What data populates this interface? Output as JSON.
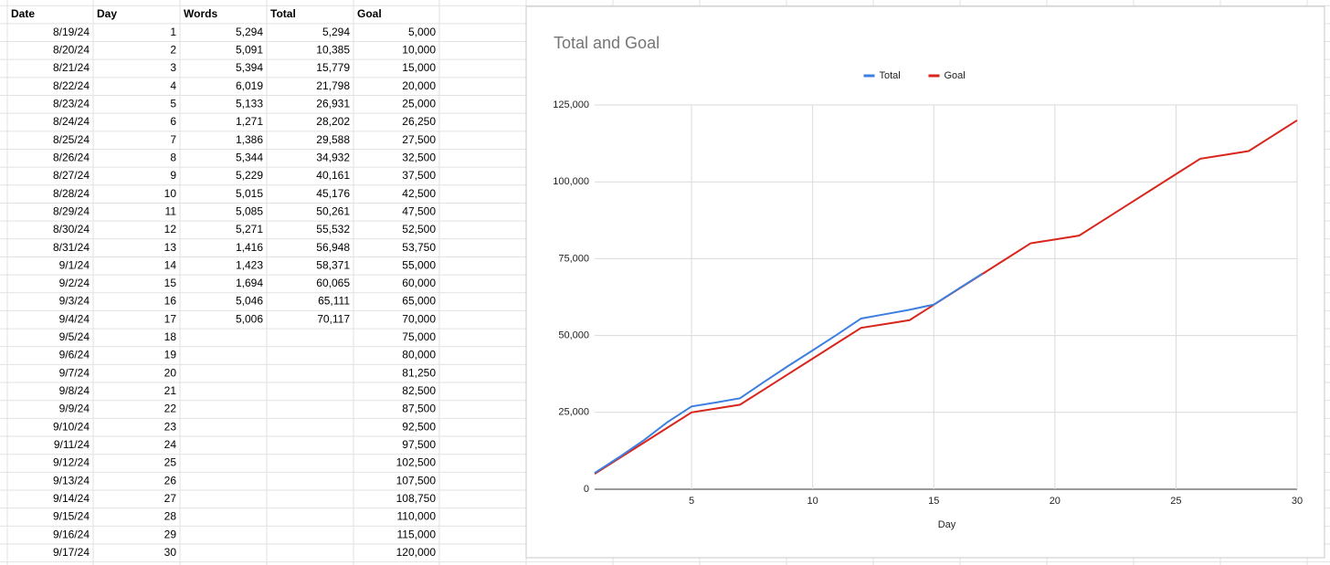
{
  "table": {
    "columns": [
      "Date",
      "Day",
      "Words",
      "Total",
      "Goal"
    ],
    "rows": [
      [
        "8/19/24",
        "1",
        "5,294",
        "5,294",
        "5,000"
      ],
      [
        "8/20/24",
        "2",
        "5,091",
        "10,385",
        "10,000"
      ],
      [
        "8/21/24",
        "3",
        "5,394",
        "15,779",
        "15,000"
      ],
      [
        "8/22/24",
        "4",
        "6,019",
        "21,798",
        "20,000"
      ],
      [
        "8/23/24",
        "5",
        "5,133",
        "26,931",
        "25,000"
      ],
      [
        "8/24/24",
        "6",
        "1,271",
        "28,202",
        "26,250"
      ],
      [
        "8/25/24",
        "7",
        "1,386",
        "29,588",
        "27,500"
      ],
      [
        "8/26/24",
        "8",
        "5,344",
        "34,932",
        "32,500"
      ],
      [
        "8/27/24",
        "9",
        "5,229",
        "40,161",
        "37,500"
      ],
      [
        "8/28/24",
        "10",
        "5,015",
        "45,176",
        "42,500"
      ],
      [
        "8/29/24",
        "11",
        "5,085",
        "50,261",
        "47,500"
      ],
      [
        "8/30/24",
        "12",
        "5,271",
        "55,532",
        "52,500"
      ],
      [
        "8/31/24",
        "13",
        "1,416",
        "56,948",
        "53,750"
      ],
      [
        "9/1/24",
        "14",
        "1,423",
        "58,371",
        "55,000"
      ],
      [
        "9/2/24",
        "15",
        "1,694",
        "60,065",
        "60,000"
      ],
      [
        "9/3/24",
        "16",
        "5,046",
        "65,111",
        "65,000"
      ],
      [
        "9/4/24",
        "17",
        "5,006",
        "70,117",
        "70,000"
      ],
      [
        "9/5/24",
        "18",
        null,
        null,
        "75,000"
      ],
      [
        "9/6/24",
        "19",
        null,
        null,
        "80,000"
      ],
      [
        "9/7/24",
        "20",
        null,
        null,
        "81,250"
      ],
      [
        "9/8/24",
        "21",
        null,
        null,
        "82,500"
      ],
      [
        "9/9/24",
        "22",
        null,
        null,
        "87,500"
      ],
      [
        "9/10/24",
        "23",
        null,
        null,
        "92,500"
      ],
      [
        "9/11/24",
        "24",
        null,
        null,
        "97,500"
      ],
      [
        "9/12/24",
        "25",
        null,
        null,
        "102,500"
      ],
      [
        "9/13/24",
        "26",
        null,
        null,
        "107,500"
      ],
      [
        "9/14/24",
        "27",
        null,
        null,
        "108,750"
      ],
      [
        "9/15/24",
        "28",
        null,
        null,
        "110,000"
      ],
      [
        "9/16/24",
        "29",
        null,
        null,
        "115,000"
      ],
      [
        "9/17/24",
        "30",
        null,
        null,
        "120,000"
      ]
    ]
  },
  "chart_data": {
    "type": "line",
    "title": "Total and Goal",
    "x_label": "Day",
    "x": [
      1,
      2,
      3,
      4,
      5,
      6,
      7,
      8,
      9,
      10,
      11,
      12,
      13,
      14,
      15,
      16,
      17,
      18,
      19,
      20,
      21,
      22,
      23,
      24,
      25,
      26,
      27,
      28,
      29,
      30
    ],
    "series": [
      {
        "name": "Total",
        "color": "#3d7fe0",
        "values": [
          5294,
          10385,
          15779,
          21798,
          26931,
          28202,
          29588,
          34932,
          40161,
          45176,
          50261,
          55532,
          56948,
          58371,
          60065,
          65111,
          70117,
          null,
          null,
          null,
          null,
          null,
          null,
          null,
          null,
          null,
          null,
          null,
          null,
          null
        ]
      },
      {
        "name": "Goal",
        "color": "#d8261c",
        "values": [
          5000,
          10000,
          15000,
          20000,
          25000,
          26250,
          27500,
          32500,
          37500,
          42500,
          47500,
          52500,
          53750,
          55000,
          60000,
          65000,
          70000,
          75000,
          80000,
          81250,
          82500,
          87500,
          92500,
          97500,
          102500,
          107500,
          108750,
          110000,
          115000,
          120000
        ]
      }
    ],
    "xlim": [
      1,
      30
    ],
    "xticks": [
      5,
      10,
      15,
      20,
      25,
      30
    ],
    "ylim": [
      0,
      125000
    ],
    "yticks": [
      0,
      {
        "value": 25000,
        "label": "25,000"
      },
      {
        "value": 50000,
        "label": "50,000"
      },
      {
        "value": 75000,
        "label": "75,000"
      },
      {
        "value": 100000,
        "label": "100,000"
      },
      {
        "value": 125000,
        "label": "125,000"
      }
    ],
    "grid": true,
    "legend": "top"
  }
}
